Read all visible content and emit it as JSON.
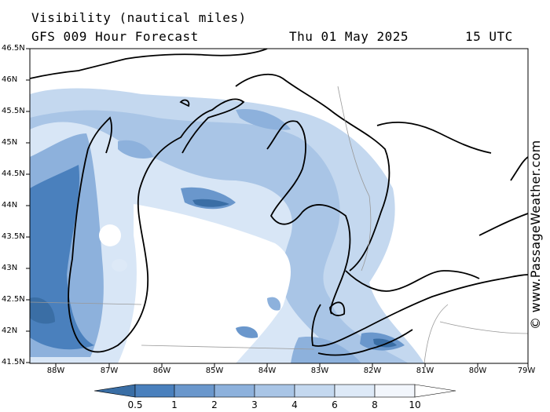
{
  "header": {
    "title": "Visibility (nautical miles)",
    "subtitle": "GFS 009 Hour Forecast",
    "date": "Thu 01 May 2025",
    "time": "15 UTC"
  },
  "credit": "© www.PassageWeather.com",
  "axes": {
    "lat_labels": [
      "46.5N",
      "46N",
      "45.5N",
      "45N",
      "44.5N",
      "44N",
      "43.5N",
      "43N",
      "42.5N",
      "42N",
      "41.5N"
    ],
    "lon_labels": [
      "88W",
      "87W",
      "86W",
      "85W",
      "84W",
      "83W",
      "82W",
      "81W",
      "80W",
      "79W"
    ]
  },
  "colorbar": {
    "ticks": [
      "0.5",
      "1",
      "2",
      "3",
      "4",
      "6",
      "8",
      "10"
    ],
    "colors": [
      "#3a6ea5",
      "#4a80bd",
      "#6a97cc",
      "#8db1dc",
      "#a9c5e6",
      "#c4d8ef",
      "#dde9f7",
      "#f2f6fc",
      "#ffffff"
    ]
  }
}
